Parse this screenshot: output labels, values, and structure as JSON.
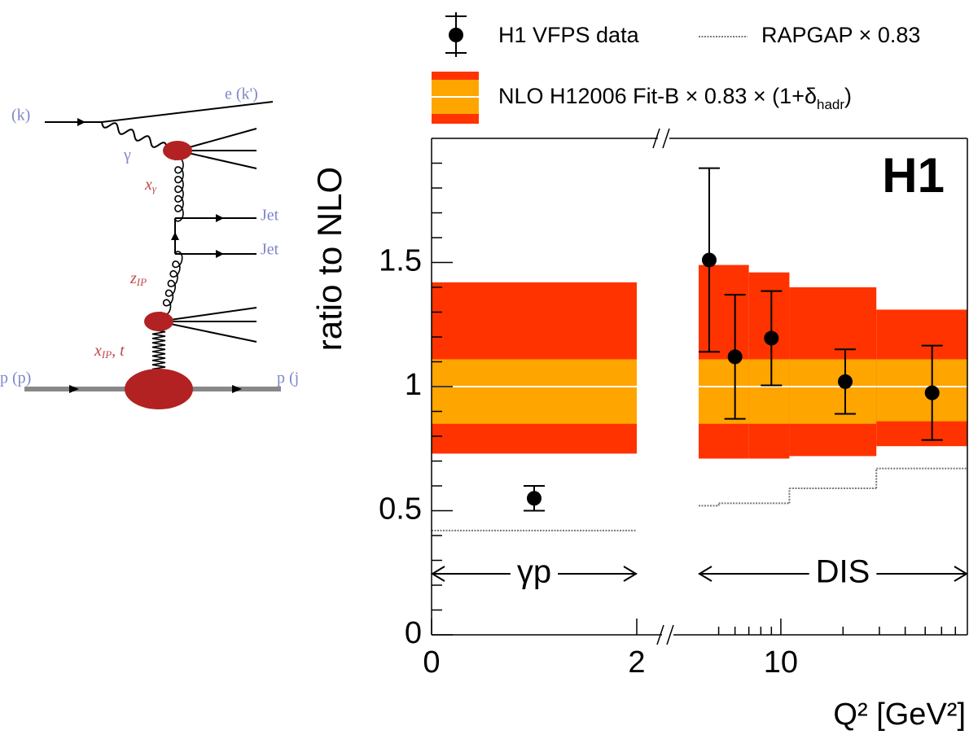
{
  "diagram": {
    "labels": [
      "(k)",
      "e (k')",
      "γ",
      "Jet",
      "Jet",
      "p (p)",
      "p (j"
    ],
    "sublabels": [
      {
        "main": "x",
        "sub": "γ"
      },
      {
        "main": "z",
        "sub": "IP"
      },
      {
        "main": "x",
        "sub": "IP",
        "tail": ", t"
      }
    ]
  },
  "chart_data": [
    {
      "type": "errorbar",
      "ylabel": "ratio to NLO",
      "ylim": [
        0,
        2
      ],
      "yticks": [
        0,
        0.5,
        1,
        1.5
      ],
      "yminorticks": [
        0.1,
        0.2,
        0.3,
        0.4,
        0.6,
        0.7,
        0.8,
        0.9,
        1.1,
        1.2,
        1.3,
        1.4,
        1.6,
        1.7,
        1.8,
        1.9
      ],
      "xlim": [
        0,
        2
      ],
      "xticks": [
        0,
        2
      ],
      "region_label": "γp",
      "legend": true,
      "series": [
        {
          "name": "H1 VFPS data",
          "style": "points",
          "color": "#000000",
          "x": [
            1
          ],
          "values": [
            0.55
          ],
          "errors": [
            0.05
          ]
        },
        {
          "name": "RAPGAP × 0.83",
          "style": "step",
          "color": "#777777",
          "bin_edges": [
            0,
            2
          ],
          "values": [
            0.42
          ]
        },
        {
          "name_parts": [
            "NLO H12006 Fit-B × 0.83 × (1+δ",
            "hadr",
            ")"
          ],
          "style": "band",
          "outer_color": "#ff3300",
          "inner_color": "#ffa500",
          "line_color": "#ffffff",
          "bin_edges": [
            0,
            2
          ],
          "values": [
            1
          ],
          "outer_low": [
            0.73
          ],
          "outer_high": [
            1.42
          ],
          "inner_low": [
            0.85
          ],
          "inner_high": [
            1.11
          ]
        }
      ]
    },
    {
      "type": "errorbar",
      "ylim": [
        0,
        2
      ],
      "xlim": [
        4,
        80
      ],
      "xscale": "log",
      "xticks": [
        10
      ],
      "xminorticks": [
        5,
        6,
        7,
        8,
        9,
        20,
        30,
        40,
        50,
        60,
        70
      ],
      "xlabel": "Q² [GeV²]",
      "region_label": "DIS",
      "annotation": "H1",
      "series": [
        {
          "style": "band",
          "outer_color": "#ff3300",
          "inner_color": "#ffa500",
          "line_color": "#ffffff",
          "bin_edges": [
            4,
            7,
            11,
            29,
            80
          ],
          "values": [
            1,
            1,
            1,
            1
          ],
          "outer_low": [
            0.71,
            0.71,
            0.72,
            0.76
          ],
          "outer_high": [
            1.49,
            1.46,
            1.4,
            1.31
          ],
          "inner_low": [
            0.85,
            0.85,
            0.85,
            0.86
          ],
          "inner_high": [
            1.11,
            1.11,
            1.11,
            1.11
          ]
        },
        {
          "style": "step",
          "color": "#777777",
          "bin_edges": [
            4,
            5,
            11,
            29,
            80
          ],
          "values": [
            0.52,
            0.53,
            0.59,
            0.67
          ]
        },
        {
          "style": "points",
          "color": "#000000",
          "x": [
            4.5,
            6,
            9,
            20.5,
            54
          ],
          "values": [
            1.51,
            1.12,
            1.195,
            1.02,
            0.975
          ],
          "errors": [
            0.37,
            0.25,
            0.19,
            0.13,
            0.19
          ]
        }
      ]
    }
  ]
}
